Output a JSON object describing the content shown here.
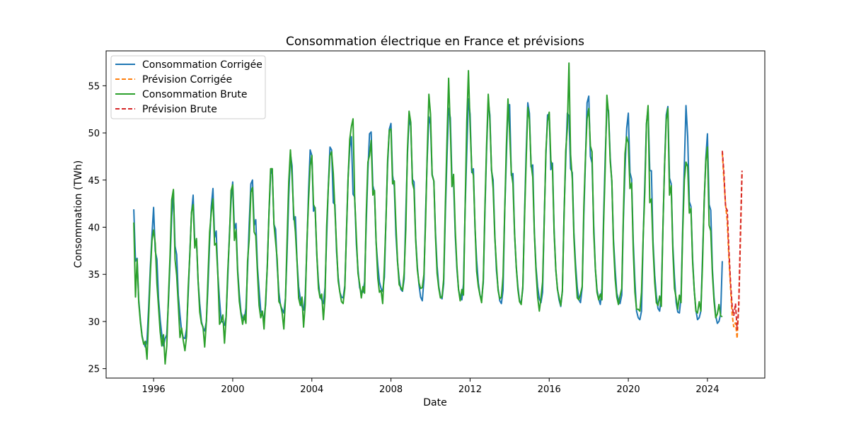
{
  "chart_data": {
    "type": "line",
    "title": "Consommation électrique en France et prévisions",
    "xlabel": "Date",
    "ylabel": "Consommation (TWh)",
    "xlim": [
      1993.6,
      2026.9
    ],
    "ylim": [
      24.0,
      58.7
    ],
    "x_ticks": [
      1996,
      2000,
      2004,
      2008,
      2012,
      2016,
      2020,
      2024
    ],
    "y_ticks": [
      25,
      30,
      35,
      40,
      45,
      50,
      55
    ],
    "grid": false,
    "legend_position": "top-left",
    "history_start": 1995.0,
    "monthly_series": [
      {
        "name": "Consommation Corrigée",
        "color": "#1f77b4",
        "dash": "solid",
        "values_by_year": [
          [
            41.9,
            36.4,
            36.7,
            32.3,
            30.1,
            28.5,
            27.7,
            27.3,
            28.0,
            31.5,
            35.6,
            39.2
          ],
          [
            42.1,
            37.5,
            36.6,
            32.4,
            30.2,
            28.6,
            27.4,
            28.2,
            28.6,
            32.1,
            36.4,
            41.1
          ],
          [
            43.8,
            38.0,
            37.1,
            32.8,
            30.7,
            29.0,
            28.3,
            28.2,
            29.2,
            32.9,
            37.4,
            41.5
          ],
          [
            43.4,
            38.3,
            38.6,
            34.3,
            31.9,
            30.0,
            29.3,
            29.0,
            30.0,
            33.8,
            38.4,
            42.2
          ],
          [
            44.1,
            38.9,
            39.6,
            34.9,
            32.3,
            30.1,
            29.9,
            29.6,
            30.5,
            34.6,
            39.3,
            42.8
          ],
          [
            44.8,
            39.8,
            40.4,
            35.5,
            32.9,
            31.0,
            30.4,
            30.2,
            31.4,
            35.5,
            40.3,
            44.6
          ],
          [
            45.0,
            40.2,
            40.8,
            35.8,
            33.4,
            31.2,
            30.7,
            30.3,
            31.8,
            36.1,
            41.5,
            45.6
          ],
          [
            46.2,
            40.3,
            39.8,
            35.9,
            33.1,
            31.7,
            31.3,
            30.9,
            32.5,
            37.4,
            43.2,
            47.8
          ],
          [
            46.5,
            40.8,
            41.1,
            36.5,
            33.7,
            32.4,
            31.6,
            31.2,
            32.8,
            37.9,
            43.8,
            48.2
          ],
          [
            47.6,
            41.7,
            42.1,
            37.0,
            34.2,
            32.6,
            32.3,
            31.9,
            33.6,
            38.9,
            44.4,
            48.5
          ],
          [
            48.2,
            42.6,
            42.4,
            37.4,
            34.7,
            33.1,
            32.6,
            32.5,
            33.8,
            39.3,
            45.2,
            48.4
          ],
          [
            49.6,
            43.5,
            43.2,
            38.2,
            35.5,
            33.6,
            33.1,
            33.1,
            34.2,
            40.3,
            46.0,
            49.9
          ],
          [
            50.1,
            44.4,
            43.7,
            38.4,
            36.0,
            34.2,
            33.5,
            33.2,
            34.7,
            41.0,
            46.7,
            50.4
          ],
          [
            51.0,
            45.5,
            44.3,
            39.2,
            36.3,
            34.5,
            33.4,
            33.2,
            34.5,
            41.5,
            47.7,
            51.5
          ],
          [
            50.7,
            45.1,
            44.8,
            38.9,
            35.8,
            33.9,
            32.6,
            32.2,
            34.4,
            41.4,
            47.4,
            51.7
          ],
          [
            50.9,
            45.6,
            44.9,
            39.5,
            35.9,
            33.7,
            32.7,
            32.4,
            34.0,
            41.5,
            47.5,
            52.6
          ],
          [
            51.6,
            45.1,
            44.8,
            39.1,
            35.6,
            33.4,
            32.6,
            32.3,
            34.0,
            41.9,
            48.1,
            53.6
          ],
          [
            52.0,
            45.8,
            46.2,
            39.9,
            36.5,
            34.1,
            32.8,
            32.3,
            34.1,
            41.6,
            48.0,
            53.4
          ],
          [
            51.9,
            46.0,
            45.0,
            39.2,
            35.4,
            33.5,
            32.2,
            31.9,
            33.3,
            41.7,
            47.3,
            52.9
          ],
          [
            53.0,
            45.5,
            45.7,
            39.4,
            35.8,
            33.7,
            32.2,
            32.0,
            33.5,
            41.2,
            47.7,
            53.2
          ],
          [
            52.1,
            46.4,
            46.6,
            39.5,
            35.8,
            33.7,
            32.4,
            32.0,
            33.1,
            41.1,
            47.6,
            51.9
          ],
          [
            52.0,
            46.1,
            46.8,
            39.7,
            35.5,
            33.5,
            32.3,
            31.6,
            33.2,
            41.4,
            47.1,
            52.1
          ],
          [
            51.8,
            46.2,
            45.8,
            39.4,
            36.1,
            33.6,
            32.3,
            32.0,
            33.6,
            41.3,
            47.1,
            53.2
          ],
          [
            53.9,
            47.5,
            46.8,
            40.2,
            35.6,
            33.4,
            32.4,
            31.8,
            33.5,
            41.0,
            47.6,
            52.6
          ],
          [
            52.4,
            47.4,
            44.8,
            38.7,
            35.5,
            33.0,
            32.3,
            31.9,
            32.8,
            40.8,
            46.1,
            50.5
          ],
          [
            52.1,
            45.8,
            45.1,
            38.4,
            34.3,
            31.1,
            30.4,
            30.2,
            31.1,
            38.9,
            44.7,
            51.0
          ],
          [
            52.6,
            46.0,
            46.0,
            38.5,
            34.9,
            32.7,
            31.4,
            31.1,
            32.7,
            39.9,
            46.5,
            51.9
          ],
          [
            52.8,
            45.2,
            44.6,
            38.1,
            34.7,
            32.0,
            31.0,
            30.9,
            32.6,
            40.2,
            46.7,
            52.9
          ],
          [
            49.6,
            42.7,
            42.2,
            36.6,
            33.3,
            31.2,
            30.2,
            30.4,
            31.1,
            36.7,
            42.6,
            47.3
          ],
          [
            49.9,
            42.4,
            41.8,
            35.6,
            32.6,
            30.6,
            29.8,
            30.0,
            30.8,
            36.4
          ]
        ]
      },
      {
        "name": "Consommation Brute",
        "color": "#2ca02c",
        "dash": "solid",
        "values_by_year": [
          [
            40.5,
            32.6,
            36.6,
            32.0,
            29.9,
            28.4,
            27.6,
            27.9,
            26.0,
            30.4,
            34.9,
            38.6
          ],
          [
            39.7,
            38.3,
            34.0,
            31.5,
            28.9,
            27.4,
            28.6,
            25.5,
            27.4,
            32.6,
            37.1,
            42.9
          ],
          [
            44.0,
            36.6,
            34.9,
            31.8,
            28.3,
            29.3,
            28.0,
            26.9,
            28.4,
            33.6,
            37.2,
            41.6
          ],
          [
            42.4,
            37.8,
            38.8,
            34.3,
            31.0,
            29.8,
            29.4,
            27.3,
            30.0,
            34.8,
            39.5,
            41.5
          ],
          [
            43.0,
            38.1,
            38.3,
            34.8,
            29.7,
            30.0,
            30.7,
            27.7,
            30.4,
            35.3,
            38.9,
            43.9
          ],
          [
            44.5,
            38.6,
            39.7,
            35.2,
            32.1,
            30.8,
            29.7,
            30.7,
            29.8,
            36.4,
            38.7,
            43.7
          ],
          [
            44.2,
            39.5,
            39.1,
            35.2,
            31.7,
            30.4,
            31.1,
            29.2,
            32.3,
            36.0,
            41.6,
            46.2
          ],
          [
            46.2,
            40.3,
            38.5,
            36.6,
            32.1,
            31.8,
            30.9,
            29.2,
            32.4,
            38.7,
            44.8,
            48.2
          ],
          [
            45.4,
            41.5,
            39.5,
            36.4,
            32.5,
            31.7,
            32.6,
            29.4,
            31.8,
            38.4,
            42.8,
            46.5
          ],
          [
            47.6,
            42.4,
            42.0,
            37.2,
            33.5,
            32.5,
            32.9,
            30.2,
            32.6,
            40.1,
            44.3,
            47.6
          ],
          [
            48.0,
            45.7,
            41.8,
            38.0,
            34.3,
            33.1,
            32.1,
            31.9,
            33.5,
            39.6,
            45.2,
            49.3
          ],
          [
            50.7,
            51.5,
            43.1,
            39.0,
            35.1,
            34.0,
            32.5,
            33.7,
            33.0,
            41.3,
            46.9,
            47.6
          ],
          [
            49.2,
            43.4,
            43.9,
            38.5,
            34.6,
            33.1,
            33.3,
            31.9,
            35.9,
            40.8,
            47.2,
            50.3
          ],
          [
            50.4,
            44.6,
            44.9,
            40.3,
            36.4,
            33.9,
            33.6,
            33.3,
            35.1,
            39.8,
            48.2,
            52.3
          ],
          [
            51.1,
            44.7,
            44.0,
            38.7,
            35.5,
            34.1,
            33.5,
            33.6,
            35.0,
            40.5,
            48.0,
            54.1
          ],
          [
            52.0,
            45.5,
            44.9,
            39.1,
            35.1,
            33.5,
            32.5,
            32.6,
            34.5,
            42.5,
            49.3,
            55.8
          ],
          [
            50.4,
            44.3,
            45.6,
            39.7,
            35.9,
            33.4,
            32.2,
            33.4,
            32.8,
            42.1,
            51.3,
            56.6
          ],
          [
            50.9,
            46.1,
            45.5,
            40.1,
            35.3,
            33.7,
            32.8,
            32.0,
            34.5,
            42.1,
            48.6,
            54.1
          ],
          [
            51.3,
            46.2,
            44.1,
            38.9,
            36.0,
            33.3,
            32.4,
            32.6,
            34.8,
            41.8,
            48.6,
            53.6
          ],
          [
            50.1,
            45.8,
            44.6,
            39.3,
            35.8,
            33.4,
            32.1,
            31.8,
            33.8,
            40.8,
            46.7,
            52.7
          ],
          [
            51.4,
            46.7,
            45.3,
            39.3,
            35.4,
            32.6,
            31.1,
            32.5,
            34.2,
            40.8,
            48.1,
            51.2
          ],
          [
            52.2,
            47.1,
            46.3,
            39.4,
            35.5,
            33.4,
            32.6,
            31.7,
            33.3,
            41.0,
            48.1,
            50.5
          ],
          [
            57.4,
            47.7,
            45.1,
            38.9,
            35.4,
            32.5,
            32.3,
            32.9,
            33.7,
            42.2,
            47.4,
            51.5
          ],
          [
            52.6,
            48.6,
            48.0,
            39.4,
            35.6,
            33.1,
            32.3,
            32.9,
            32.3,
            40.2,
            46.5,
            54.0
          ],
          [
            52.1,
            47.0,
            44.9,
            38.2,
            34.5,
            32.6,
            31.8,
            32.7,
            33.5,
            41.4,
            47.8,
            49.6
          ],
          [
            48.9,
            44.1,
            44.7,
            37.5,
            33.1,
            31.3,
            31.3,
            31.1,
            33.1,
            39.0,
            43.7,
            50.9
          ],
          [
            52.9,
            42.6,
            43.0,
            37.9,
            34.1,
            32.0,
            31.7,
            32.7,
            31.6,
            40.0,
            46.5,
            51.4
          ],
          [
            52.6,
            43.4,
            44.4,
            37.5,
            33.5,
            32.5,
            31.3,
            32.8,
            32.0,
            39.6,
            45.0,
            46.9
          ],
          [
            46.4,
            41.5,
            42.0,
            36.2,
            33.3,
            31.1,
            30.9,
            32.1,
            31.1,
            35.9,
            42.8,
            47.0
          ],
          [
            48.5,
            40.2,
            39.6,
            35.1,
            32.2,
            30.4,
            30.8,
            31.8,
            30.6,
            30.5
          ]
        ]
      }
    ],
    "forecast_series": [
      {
        "name": "Prévision Corrigée",
        "color": "#ff7f0e",
        "dash": "dashed",
        "x": [
          2024.75,
          2024.83,
          2024.92,
          2025.0,
          2025.08,
          2025.17,
          2025.25,
          2025.33,
          2025.42,
          2025.5,
          2025.58,
          2025.67,
          2025.75
        ],
        "y": [
          47.9,
          45.2,
          42.3,
          40.7,
          37.0,
          33.5,
          30.7,
          29.4,
          29.9,
          28.2,
          31.7,
          38.9,
          45.7
        ]
      },
      {
        "name": "Prévision Brute",
        "color": "#d62728",
        "dash": "dashed",
        "x": [
          2024.75,
          2024.83,
          2024.92,
          2025.0,
          2025.08,
          2025.17,
          2025.25,
          2025.33,
          2025.42,
          2025.5,
          2025.58,
          2025.67,
          2025.75
        ],
        "y": [
          48.1,
          45.9,
          42.1,
          41.8,
          37.8,
          34.1,
          31.6,
          30.6,
          31.9,
          29.1,
          31.4,
          39.5,
          46.0
        ]
      }
    ],
    "legend": [
      "Consommation Corrigée",
      "Prévision Corrigée",
      "Consommation Brute",
      "Prévision Brute"
    ]
  }
}
